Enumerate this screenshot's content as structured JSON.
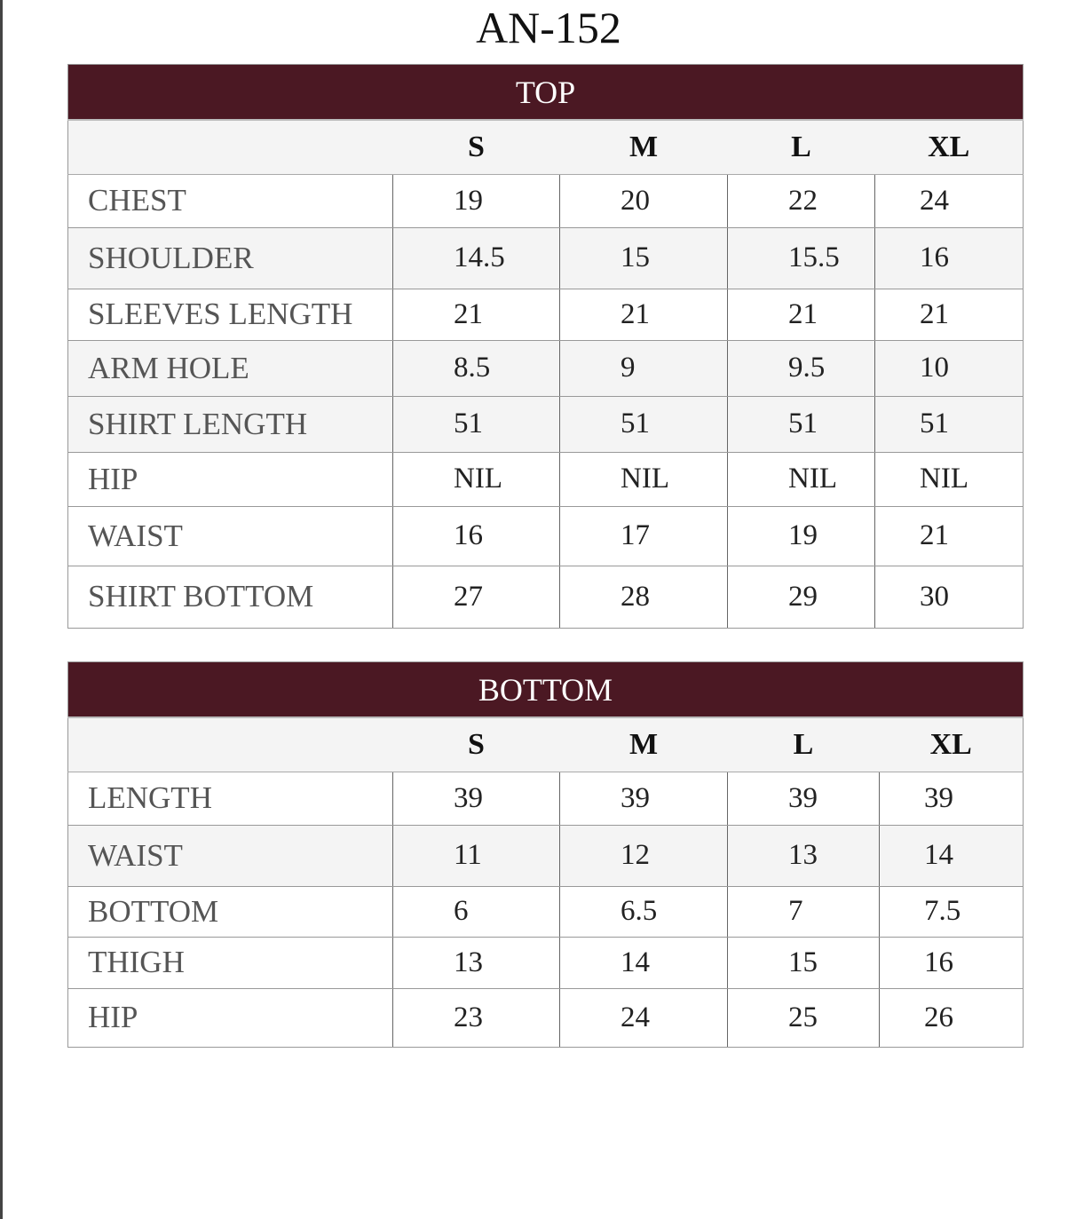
{
  "title": "AN-152",
  "sizes": [
    "S",
    "M",
    "L",
    "XL"
  ],
  "top": {
    "heading": "TOP",
    "rows": [
      {
        "label": "CHEST",
        "values": [
          "19",
          "20",
          "22",
          "24"
        ]
      },
      {
        "label": "SHOULDER",
        "values": [
          "14.5",
          "15",
          "15.5",
          "16"
        ]
      },
      {
        "label": "SLEEVES LENGTH",
        "values": [
          "21",
          "21",
          "21",
          "21"
        ]
      },
      {
        "label": "ARM HOLE",
        "values": [
          "8.5",
          "9",
          "9.5",
          "10"
        ]
      },
      {
        "label": "SHIRT LENGTH",
        "values": [
          "51",
          "51",
          "51",
          "51"
        ]
      },
      {
        "label": "HIP",
        "values": [
          "NIL",
          "NIL",
          "NIL",
          "NIL"
        ]
      },
      {
        "label": "WAIST",
        "values": [
          "16",
          "17",
          "19",
          "21"
        ]
      },
      {
        "label": "SHIRT BOTTOM",
        "values": [
          "27",
          "28",
          "29",
          "30"
        ]
      }
    ]
  },
  "bottom": {
    "heading": "BOTTOM",
    "rows": [
      {
        "label": "LENGTH",
        "values": [
          "39",
          "39",
          "39",
          "39"
        ]
      },
      {
        "label": "WAIST",
        "values": [
          "11",
          "12",
          "13",
          "14"
        ]
      },
      {
        "label": "BOTTOM",
        "values": [
          "6",
          "6.5",
          "7",
          "7.5"
        ]
      },
      {
        "label": "THIGH",
        "values": [
          "13",
          "14",
          "15",
          "16"
        ]
      },
      {
        "label": "HIP",
        "values": [
          "23",
          "24",
          "25",
          "26"
        ]
      }
    ]
  },
  "colors": {
    "header": "#4b1823",
    "alt_row": "#f4f4f4"
  }
}
